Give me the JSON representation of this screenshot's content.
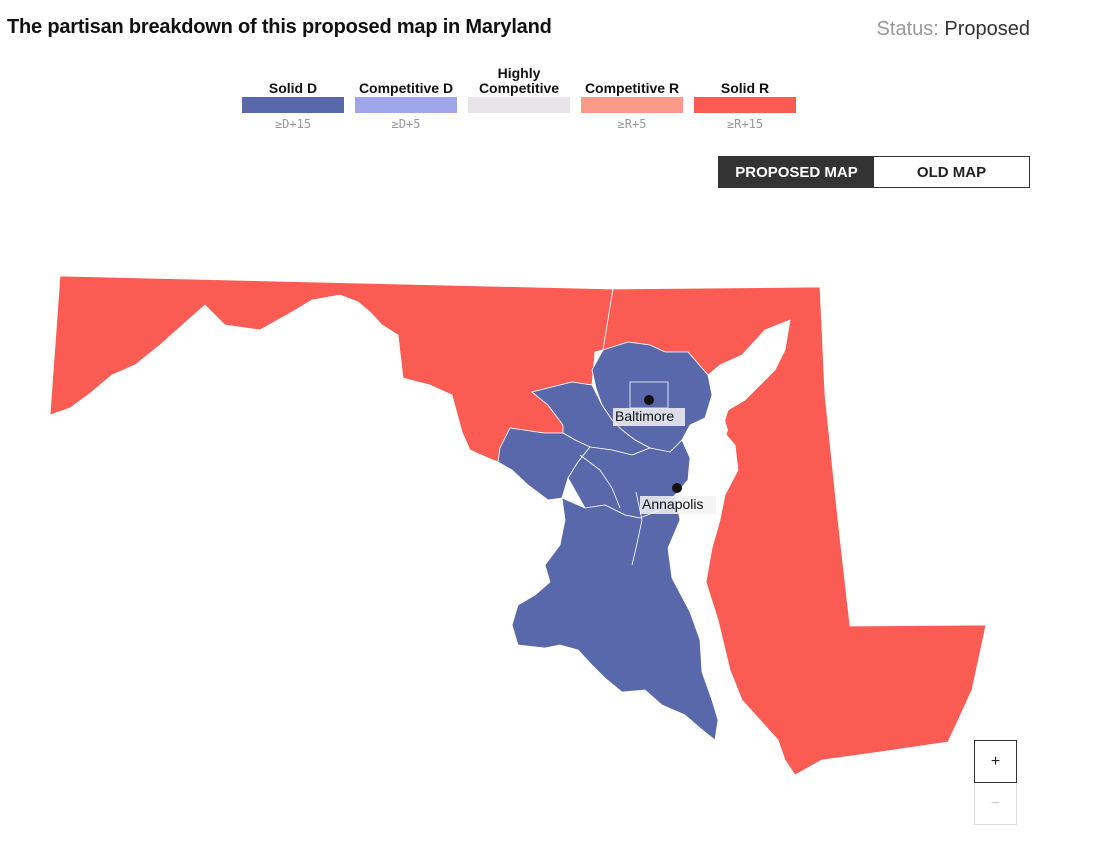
{
  "header": {
    "title": "The partisan breakdown of this proposed map in Maryland",
    "status_label": "Status:",
    "status_value": "Proposed"
  },
  "legend": {
    "items": [
      {
        "label": "Solid D",
        "threshold": "≥D+15",
        "color": "#5868ab"
      },
      {
        "label": "Competitive D",
        "threshold": "≥D+5",
        "color": "#a0a6ea"
      },
      {
        "label": "Highly Competitive",
        "threshold": "",
        "color": "#e9e3ea"
      },
      {
        "label": "Competitive R",
        "threshold": "≥R+5",
        "color": "#fa9a88"
      },
      {
        "label": "Solid R",
        "threshold": "≥R+15",
        "color": "#fa5b52"
      }
    ]
  },
  "toggle": {
    "proposed_label": "PROPOSED MAP",
    "old_label": "OLD MAP",
    "selected": "PROPOSED MAP"
  },
  "map": {
    "cities": [
      {
        "name": "Baltimore"
      },
      {
        "name": "Annapolis"
      }
    ]
  },
  "zoom": {
    "in_label": "+",
    "out_label": "−"
  }
}
